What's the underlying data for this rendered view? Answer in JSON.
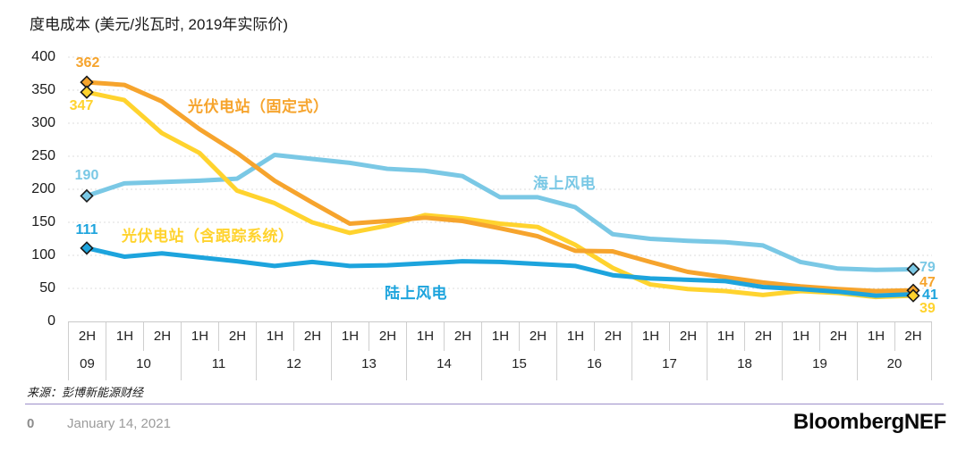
{
  "title": "度电成本 (美元/兆瓦时, 2019年实际价)",
  "chart_data": {
    "type": "line",
    "title": "度电成本 (美元/兆瓦时, 2019年实际价)",
    "ylabel": "美元/兆瓦时",
    "ylim": [
      0,
      400
    ],
    "yticks": [
      400,
      350,
      300,
      250,
      200,
      150,
      100,
      50,
      0
    ],
    "grid": true,
    "legend_position": "inline-annotations",
    "x_axis": {
      "halfyear_labels": [
        "2H",
        "1H",
        "2H",
        "1H",
        "2H",
        "1H",
        "2H",
        "1H",
        "2H",
        "1H",
        "2H",
        "1H",
        "2H",
        "1H",
        "2H",
        "1H",
        "2H",
        "1H",
        "2H",
        "1H",
        "2H",
        "1H",
        "2H"
      ],
      "years": [
        {
          "label": "09",
          "span": 1
        },
        {
          "label": "10",
          "span": 2
        },
        {
          "label": "11",
          "span": 2
        },
        {
          "label": "12",
          "span": 2
        },
        {
          "label": "13",
          "span": 2
        },
        {
          "label": "14",
          "span": 2
        },
        {
          "label": "15",
          "span": 2
        },
        {
          "label": "16",
          "span": 2
        },
        {
          "label": "17",
          "span": 2
        },
        {
          "label": "18",
          "span": 2
        },
        {
          "label": "19",
          "span": 2
        },
        {
          "label": "20",
          "span": 2
        }
      ]
    },
    "series": [
      {
        "name": "光伏电站（固定式）",
        "color": "#F6A42D",
        "start_value": 362,
        "end_value": 47,
        "marker_start": true,
        "marker_end": true,
        "values": [
          362,
          358,
          333,
          291,
          255,
          213,
          180,
          148,
          152,
          157,
          152,
          141,
          129,
          107,
          106,
          90,
          75,
          67,
          59,
          53,
          49,
          46,
          47
        ]
      },
      {
        "name": "光伏电站（含跟踪系统）",
        "color": "#FFD32E",
        "start_value": 347,
        "end_value": 39,
        "marker_start": true,
        "marker_end": true,
        "values": [
          347,
          335,
          285,
          255,
          198,
          179,
          150,
          134,
          145,
          161,
          156,
          148,
          143,
          116,
          81,
          56,
          49,
          46,
          40,
          46,
          43,
          37,
          39
        ]
      },
      {
        "name": "海上风电",
        "color": "#7AC8E5",
        "start_value": 190,
        "end_value": 79,
        "marker_start": true,
        "marker_end": true,
        "values": [
          190,
          209,
          211,
          213,
          216,
          252,
          246,
          240,
          231,
          228,
          220,
          188,
          188,
          173,
          132,
          125,
          122,
          120,
          115,
          90,
          80,
          78,
          79
        ]
      },
      {
        "name": "陆上风电",
        "color": "#1DA4DD",
        "start_value": 111,
        "end_value": 41,
        "marker_start": true,
        "marker_end": false,
        "values": [
          111,
          98,
          103,
          97,
          91,
          84,
          90,
          84,
          85,
          88,
          91,
          90,
          87,
          84,
          70,
          65,
          63,
          61,
          52,
          49,
          45,
          39,
          41
        ]
      }
    ]
  },
  "source": "来源：彭博新能源财经",
  "footer": {
    "page_number": "0",
    "date": "January 14, 2021",
    "brand": "BloombergNEF"
  }
}
